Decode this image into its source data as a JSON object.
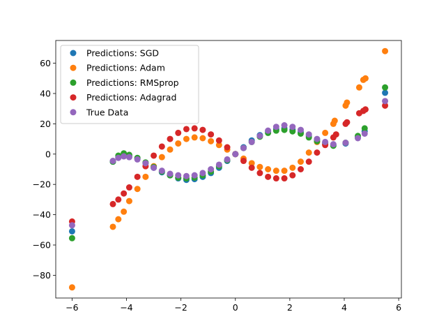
{
  "chart_data": {
    "type": "scatter",
    "title": "",
    "xlabel": "",
    "ylabel": "",
    "xlim": [
      -6.6,
      6.1
    ],
    "ylim": [
      -95,
      75
    ],
    "xticks": [
      -6,
      -4,
      -2,
      0,
      2,
      4,
      6
    ],
    "yticks": [
      -80,
      -60,
      -40,
      -20,
      0,
      20,
      40,
      60
    ],
    "xtick_labels": [
      "−6",
      "−4",
      "−2",
      "0",
      "2",
      "4",
      "6"
    ],
    "ytick_labels": [
      "−80",
      "−60",
      "−40",
      "−20",
      "0",
      "20",
      "40",
      "60"
    ],
    "grid": false,
    "legend_position": "upper-left",
    "series": [
      {
        "name": "Predictions: SGD",
        "color": "#1f77b4",
        "points": [
          [
            -6.0,
            -51
          ],
          [
            -4.5,
            -5
          ],
          [
            -4.3,
            -2
          ],
          [
            -4.1,
            -1
          ],
          [
            -3.9,
            -1.5
          ],
          [
            -3.6,
            -3
          ],
          [
            -3.3,
            -6
          ],
          [
            -3.0,
            -9
          ],
          [
            -2.7,
            -12
          ],
          [
            -2.4,
            -14
          ],
          [
            -2.1,
            -16
          ],
          [
            -1.8,
            -17
          ],
          [
            -1.5,
            -16.5
          ],
          [
            -1.2,
            -15
          ],
          [
            -0.9,
            -12.5
          ],
          [
            -0.6,
            -9
          ],
          [
            -0.3,
            -4.5
          ],
          [
            0.0,
            0
          ],
          [
            0.3,
            4.5
          ],
          [
            0.6,
            9
          ],
          [
            0.9,
            12.5
          ],
          [
            1.2,
            15
          ],
          [
            1.5,
            16.5
          ],
          [
            1.8,
            17
          ],
          [
            2.1,
            16
          ],
          [
            2.4,
            14.5
          ],
          [
            2.7,
            12
          ],
          [
            3.0,
            9.5
          ],
          [
            3.3,
            7.5
          ],
          [
            3.6,
            6
          ],
          [
            4.05,
            7
          ],
          [
            4.5,
            11
          ],
          [
            4.75,
            15
          ],
          [
            5.5,
            40.5
          ]
        ]
      },
      {
        "name": "Predictions: Adam",
        "color": "#ff7f0e",
        "points": [
          [
            -6.0,
            -88
          ],
          [
            -4.5,
            -48
          ],
          [
            -4.3,
            -43
          ],
          [
            -4.1,
            -38
          ],
          [
            -3.9,
            -31
          ],
          [
            -3.6,
            -23
          ],
          [
            -3.3,
            -15
          ],
          [
            -3.0,
            -8
          ],
          [
            -2.7,
            -2
          ],
          [
            -2.4,
            3
          ],
          [
            -2.1,
            7
          ],
          [
            -1.8,
            10
          ],
          [
            -1.5,
            11
          ],
          [
            -1.2,
            10.5
          ],
          [
            -0.9,
            8.5
          ],
          [
            -0.6,
            6
          ],
          [
            -0.3,
            3
          ],
          [
            0.0,
            0
          ],
          [
            0.3,
            -3
          ],
          [
            0.6,
            -6
          ],
          [
            0.9,
            -8.5
          ],
          [
            1.2,
            -10
          ],
          [
            1.5,
            -11
          ],
          [
            1.8,
            -11
          ],
          [
            2.1,
            -9
          ],
          [
            2.4,
            -5
          ],
          [
            2.7,
            1
          ],
          [
            3.0,
            8
          ],
          [
            3.3,
            14
          ],
          [
            3.6,
            20
          ],
          [
            3.65,
            22
          ],
          [
            4.05,
            32
          ],
          [
            4.1,
            34
          ],
          [
            4.55,
            44
          ],
          [
            4.7,
            49
          ],
          [
            4.78,
            50
          ],
          [
            5.5,
            68
          ]
        ]
      },
      {
        "name": "Predictions: RMSprop",
        "color": "#2ca02c",
        "points": [
          [
            -6.0,
            -55.5
          ],
          [
            -4.5,
            -5
          ],
          [
            -4.3,
            -1
          ],
          [
            -4.1,
            0.5
          ],
          [
            -3.9,
            -0.5
          ],
          [
            -3.6,
            -2.5
          ],
          [
            -3.3,
            -5.5
          ],
          [
            -3.0,
            -8.5
          ],
          [
            -2.7,
            -11.5
          ],
          [
            -2.4,
            -14
          ],
          [
            -2.1,
            -15.5
          ],
          [
            -1.8,
            -16
          ],
          [
            -1.5,
            -15.5
          ],
          [
            -1.2,
            -14
          ],
          [
            -0.9,
            -11.5
          ],
          [
            -0.6,
            -8
          ],
          [
            -0.3,
            -4
          ],
          [
            0.0,
            0
          ],
          [
            0.3,
            4
          ],
          [
            0.6,
            8
          ],
          [
            0.9,
            11.5
          ],
          [
            1.2,
            14
          ],
          [
            1.5,
            15.5
          ],
          [
            1.8,
            16
          ],
          [
            2.1,
            15
          ],
          [
            2.4,
            13.5
          ],
          [
            2.7,
            11
          ],
          [
            3.0,
            8.5
          ],
          [
            3.3,
            6.5
          ],
          [
            3.6,
            5.5
          ],
          [
            4.05,
            7.5
          ],
          [
            4.5,
            12
          ],
          [
            4.75,
            17
          ],
          [
            5.5,
            44
          ]
        ]
      },
      {
        "name": "Predictions: Adagrad",
        "color": "#d62728",
        "points": [
          [
            -6.0,
            -44.5
          ],
          [
            -4.5,
            -33
          ],
          [
            -4.3,
            -30
          ],
          [
            -4.1,
            -26
          ],
          [
            -3.9,
            -22
          ],
          [
            -3.6,
            -15
          ],
          [
            -3.3,
            -8
          ],
          [
            -3.0,
            -1
          ],
          [
            -2.7,
            5
          ],
          [
            -2.4,
            10
          ],
          [
            -2.1,
            14
          ],
          [
            -1.8,
            16.5
          ],
          [
            -1.5,
            17
          ],
          [
            -1.2,
            16
          ],
          [
            -0.9,
            13
          ],
          [
            -0.6,
            9
          ],
          [
            -0.3,
            4.5
          ],
          [
            0.0,
            0
          ],
          [
            0.3,
            -4.5
          ],
          [
            0.6,
            -9
          ],
          [
            0.9,
            -12.5
          ],
          [
            1.2,
            -15
          ],
          [
            1.5,
            -16
          ],
          [
            1.8,
            -16
          ],
          [
            2.1,
            -14
          ],
          [
            2.4,
            -10
          ],
          [
            2.7,
            -5
          ],
          [
            3.0,
            1
          ],
          [
            3.3,
            6
          ],
          [
            3.6,
            11
          ],
          [
            3.7,
            13
          ],
          [
            4.05,
            20
          ],
          [
            4.1,
            21
          ],
          [
            4.55,
            27
          ],
          [
            4.7,
            28.5
          ],
          [
            4.78,
            29.5
          ],
          [
            5.5,
            32
          ]
        ]
      },
      {
        "name": "True Data",
        "color": "#9467bd",
        "points": [
          [
            -6.0,
            -47
          ],
          [
            -4.5,
            -4.5
          ],
          [
            -4.3,
            -2.5
          ],
          [
            -4.1,
            -1.5
          ],
          [
            -3.9,
            -2
          ],
          [
            -3.6,
            -3.5
          ],
          [
            -3.3,
            -6
          ],
          [
            -3.0,
            -9
          ],
          [
            -2.7,
            -11
          ],
          [
            -2.4,
            -13
          ],
          [
            -2.1,
            -14
          ],
          [
            -1.8,
            -14.5
          ],
          [
            -1.5,
            -14
          ],
          [
            -1.2,
            -12.5
          ],
          [
            -0.9,
            -10
          ],
          [
            -0.6,
            -7
          ],
          [
            -0.3,
            -3.5
          ],
          [
            0.0,
            0
          ],
          [
            0.3,
            4
          ],
          [
            0.6,
            8
          ],
          [
            0.9,
            12
          ],
          [
            1.2,
            15.5
          ],
          [
            1.5,
            18
          ],
          [
            1.8,
            19
          ],
          [
            2.1,
            18
          ],
          [
            2.4,
            16
          ],
          [
            2.7,
            13
          ],
          [
            3.0,
            10
          ],
          [
            3.3,
            8
          ],
          [
            3.6,
            6.5
          ],
          [
            4.05,
            7.5
          ],
          [
            4.5,
            10.5
          ],
          [
            4.75,
            13.5
          ],
          [
            5.5,
            35
          ]
        ]
      }
    ]
  }
}
